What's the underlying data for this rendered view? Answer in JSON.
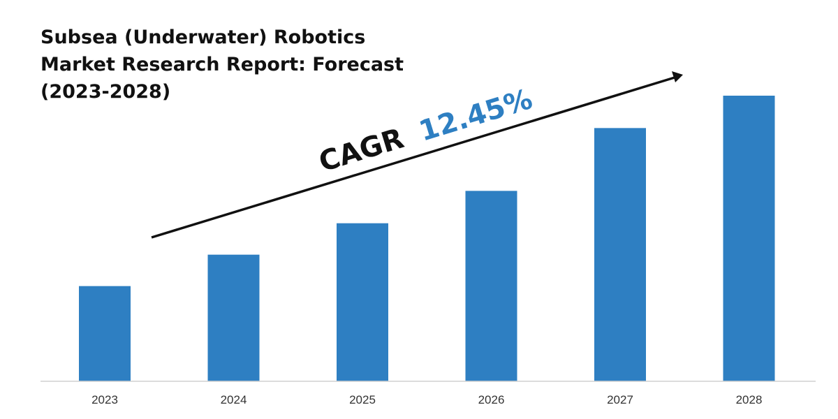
{
  "chart_data": {
    "type": "bar",
    "title_lines": [
      "Subsea (Underwater) Robotics",
      "Market Research Report: Forecast",
      "(2023-2028)"
    ],
    "categories": [
      "2023",
      "2024",
      "2025",
      "2026",
      "2027",
      "2028"
    ],
    "values": [
      1.0,
      1.33,
      1.66,
      2.0,
      2.66,
      3.0
    ],
    "ylim": [
      0,
      3.0
    ],
    "grid": false,
    "legend": "none",
    "bar_color": "#2e7fc2",
    "annotation": {
      "prefix": "CAGR",
      "value": "12.45%",
      "prefix_color": "#111111",
      "value_color": "#2e7fc2"
    }
  }
}
